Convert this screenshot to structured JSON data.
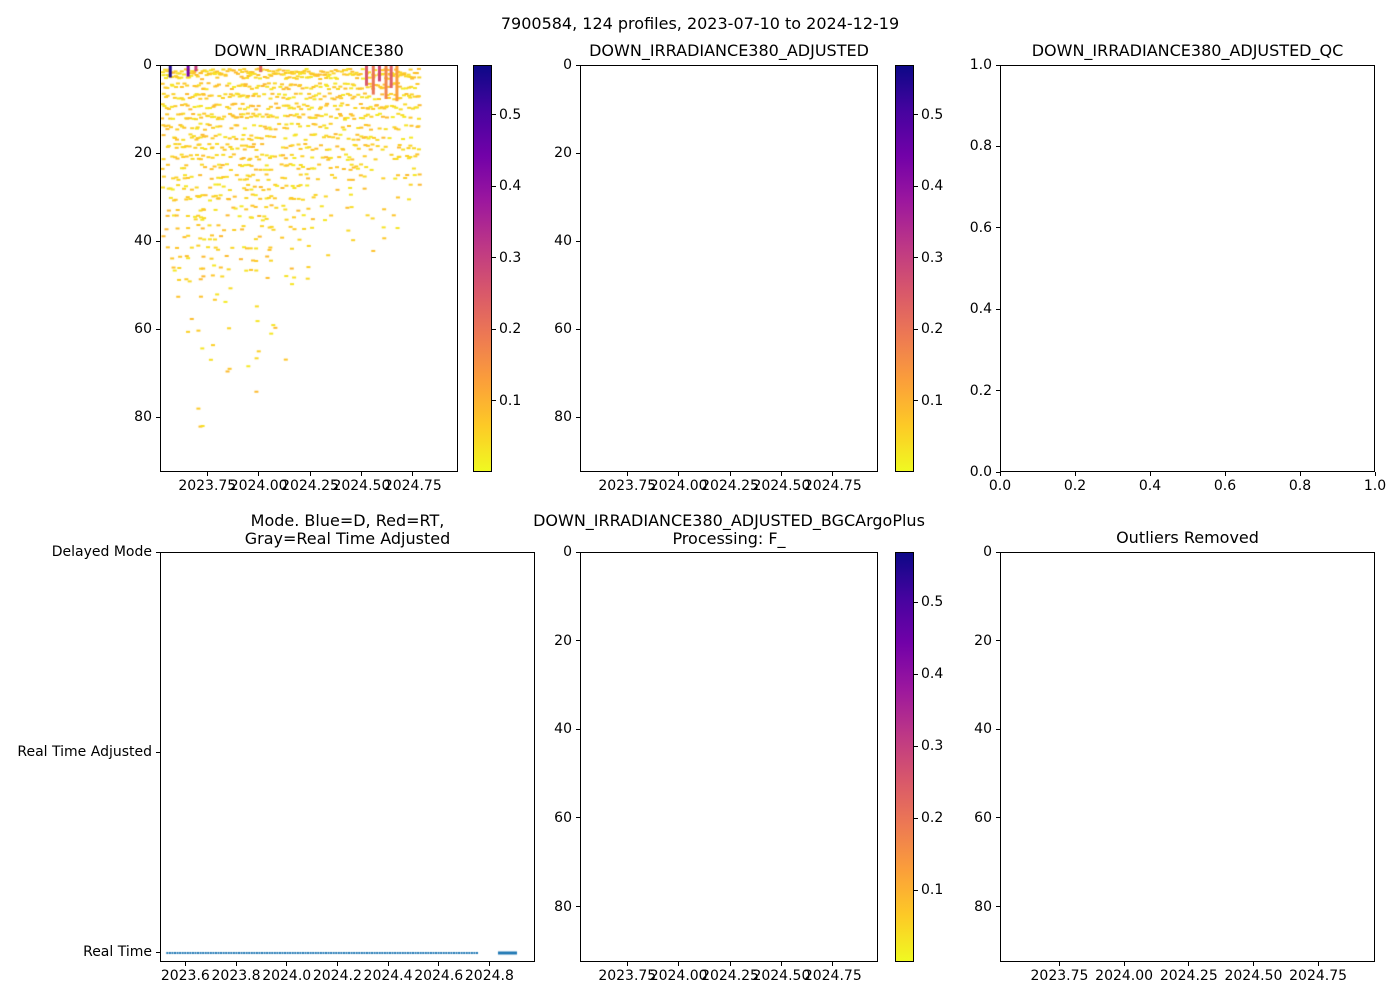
{
  "figure": {
    "title": "7900584, 124 profiles, 2023-07-10 to 2024-12-19",
    "background": "#ffffff"
  },
  "palette": {
    "axis_color": "#000000",
    "plasma_stops": [
      "#0d0887",
      "#46039f",
      "#7201a8",
      "#9c179e",
      "#bd3786",
      "#d8576b",
      "#ed7953",
      "#fb9f3a",
      "#fdca26",
      "#f0f921"
    ]
  },
  "colorbar": {
    "vmin": 0.0,
    "vmax": 0.57,
    "ticks": [
      {
        "v": 0.1,
        "label": "0.1"
      },
      {
        "v": 0.2,
        "label": "0.2"
      },
      {
        "v": 0.3,
        "label": "0.3"
      },
      {
        "v": 0.4,
        "label": "0.4"
      },
      {
        "v": 0.5,
        "label": "0.5"
      }
    ]
  },
  "chart_data": [
    {
      "type": "scatter",
      "title": "DOWN_IRRADIANCE380",
      "xlim": [
        2023.52,
        2024.97
      ],
      "ylim": [
        0,
        92.5
      ],
      "x_ticks": [
        {
          "v": 2023.75,
          "label": "2023.75"
        },
        {
          "v": 2024.0,
          "label": "2024.00"
        },
        {
          "v": 2024.25,
          "label": "2024.25"
        },
        {
          "v": 2024.5,
          "label": "2024.50"
        },
        {
          "v": 2024.75,
          "label": "2024.75"
        }
      ],
      "y_ticks": [
        {
          "v": 0,
          "label": "0"
        },
        {
          "v": 20,
          "label": "20"
        },
        {
          "v": 40,
          "label": "40"
        },
        {
          "v": 60,
          "label": "60"
        },
        {
          "v": 80,
          "label": "80"
        }
      ],
      "colorbar": true,
      "scatter": {
        "seed": 20230710,
        "n_profiles": 124,
        "x_start": 2023.53,
        "x_end": 2024.775,
        "depth_step": 2.3,
        "value_low": 0.02,
        "value_high": 0.09,
        "depth_envelope": [
          [
            2023.53,
            46
          ],
          [
            2023.66,
            60
          ],
          [
            2023.78,
            58
          ],
          [
            2023.9,
            52
          ],
          [
            2023.98,
            56
          ],
          [
            2024.08,
            50
          ],
          [
            2024.2,
            46
          ],
          [
            2024.32,
            44
          ],
          [
            2024.45,
            40
          ],
          [
            2024.55,
            36
          ],
          [
            2024.65,
            35
          ],
          [
            2024.775,
            36
          ]
        ],
        "deep_profile_x": 2023.985,
        "deep_profile_depth": 91,
        "deep_outlier_xrange": [
          2023.7,
          2024.18
        ],
        "surface_marks": [
          {
            "x": 2023.565,
            "d0": 0,
            "d1": 2.6,
            "value": 0.55
          },
          {
            "x": 2023.652,
            "d0": 0,
            "d1": 2.4,
            "value": 0.44
          },
          {
            "x": 2023.69,
            "d0": 0,
            "d1": 1.2,
            "value": 0.3
          },
          {
            "x": 2024.005,
            "d0": 0,
            "d1": 1.4,
            "value": 0.22
          },
          {
            "x": 2024.52,
            "d0": 0,
            "d1": 4.5,
            "value": 0.25
          },
          {
            "x": 2024.553,
            "d0": 0,
            "d1": 6.5,
            "value": 0.2
          },
          {
            "x": 2024.583,
            "d0": 0,
            "d1": 3.5,
            "value": 0.28
          },
          {
            "x": 2024.615,
            "d0": 0,
            "d1": 7.5,
            "value": 0.17
          },
          {
            "x": 2024.64,
            "d0": 0,
            "d1": 5.0,
            "value": 0.24
          },
          {
            "x": 2024.668,
            "d0": 0,
            "d1": 8.0,
            "value": 0.13
          }
        ]
      }
    },
    {
      "type": "scatter",
      "empty": true,
      "title": "DOWN_IRRADIANCE380_ADJUSTED",
      "xlim": [
        2023.52,
        2024.97
      ],
      "ylim": [
        0,
        92.5
      ],
      "x_ticks": [
        {
          "v": 2023.75,
          "label": "2023.75"
        },
        {
          "v": 2024.0,
          "label": "2024.00"
        },
        {
          "v": 2024.25,
          "label": "2024.25"
        },
        {
          "v": 2024.5,
          "label": "2024.50"
        },
        {
          "v": 2024.75,
          "label": "2024.75"
        }
      ],
      "y_ticks": [
        {
          "v": 0,
          "label": "0"
        },
        {
          "v": 20,
          "label": "20"
        },
        {
          "v": 40,
          "label": "40"
        },
        {
          "v": 60,
          "label": "60"
        },
        {
          "v": 80,
          "label": "80"
        }
      ],
      "colorbar": true
    },
    {
      "type": "scatter",
      "empty": true,
      "title": "DOWN_IRRADIANCE380_ADJUSTED_QC",
      "xlim": [
        0,
        1
      ],
      "ylim": [
        1,
        0
      ],
      "x_ticks": [
        {
          "v": 0,
          "label": "0.0"
        },
        {
          "v": 0.2,
          "label": "0.2"
        },
        {
          "v": 0.4,
          "label": "0.4"
        },
        {
          "v": 0.6,
          "label": "0.6"
        },
        {
          "v": 0.8,
          "label": "0.8"
        },
        {
          "v": 1,
          "label": "1.0"
        }
      ],
      "y_ticks": [
        {
          "v": 0,
          "label": "0.0"
        },
        {
          "v": 0.2,
          "label": "0.2"
        },
        {
          "v": 0.4,
          "label": "0.4"
        },
        {
          "v": 0.6,
          "label": "0.6"
        },
        {
          "v": 0.8,
          "label": "0.8"
        },
        {
          "v": 1,
          "label": "1.0"
        }
      ],
      "colorbar": false
    },
    {
      "type": "line",
      "title": "Mode. Blue=D, Red=RT,\nGray=Real Time Adjusted",
      "xlim": [
        2023.5,
        2024.98
      ],
      "ylim": [
        2.0,
        -0.05
      ],
      "x_ticks": [
        {
          "v": 2023.6,
          "label": "2023.6"
        },
        {
          "v": 2023.8,
          "label": "2023.8"
        },
        {
          "v": 2024.0,
          "label": "2024.0"
        },
        {
          "v": 2024.2,
          "label": "2024.2"
        },
        {
          "v": 2024.4,
          "label": "2024.4"
        },
        {
          "v": 2024.6,
          "label": "2024.6"
        },
        {
          "v": 2024.8,
          "label": "2024.8"
        }
      ],
      "y_ticks": [
        {
          "v": 2,
          "label": "Delayed Mode"
        },
        {
          "v": 1,
          "label": "Real Time Adjusted"
        },
        {
          "v": 0,
          "label": "Real Time"
        }
      ],
      "colorbar": false,
      "mode": {
        "color": "#1f77b4",
        "level_label": "Real Time",
        "dotted": {
          "x0": 2023.525,
          "x1": 2024.755,
          "step": 0.0101
        },
        "solid": {
          "x0": 2024.83,
          "x1": 2024.905
        }
      }
    },
    {
      "type": "scatter",
      "empty": true,
      "title": "DOWN_IRRADIANCE380_ADJUSTED_BGCArgoPlus\nProcessing: F_",
      "xlim": [
        2023.52,
        2024.97
      ],
      "ylim": [
        0,
        92.5
      ],
      "x_ticks": [
        {
          "v": 2023.75,
          "label": "2023.75"
        },
        {
          "v": 2024.0,
          "label": "2024.00"
        },
        {
          "v": 2024.25,
          "label": "2024.25"
        },
        {
          "v": 2024.5,
          "label": "2024.50"
        },
        {
          "v": 2024.75,
          "label": "2024.75"
        }
      ],
      "y_ticks": [
        {
          "v": 0,
          "label": "0"
        },
        {
          "v": 20,
          "label": "20"
        },
        {
          "v": 40,
          "label": "40"
        },
        {
          "v": 60,
          "label": "60"
        },
        {
          "v": 80,
          "label": "80"
        }
      ],
      "colorbar": true
    },
    {
      "type": "scatter",
      "empty": true,
      "title": "Outliers Removed",
      "xlim": [
        2023.52,
        2024.97
      ],
      "ylim": [
        0,
        92.5
      ],
      "x_ticks": [
        {
          "v": 2023.75,
          "label": "2023.75"
        },
        {
          "v": 2024.0,
          "label": "2024.00"
        },
        {
          "v": 2024.25,
          "label": "2024.25"
        },
        {
          "v": 2024.5,
          "label": "2024.50"
        },
        {
          "v": 2024.75,
          "label": "2024.75"
        }
      ],
      "y_ticks": [
        {
          "v": 0,
          "label": "0"
        },
        {
          "v": 20,
          "label": "20"
        },
        {
          "v": 40,
          "label": "40"
        },
        {
          "v": 60,
          "label": "60"
        },
        {
          "v": 80,
          "label": "80"
        }
      ],
      "colorbar": false
    }
  ]
}
